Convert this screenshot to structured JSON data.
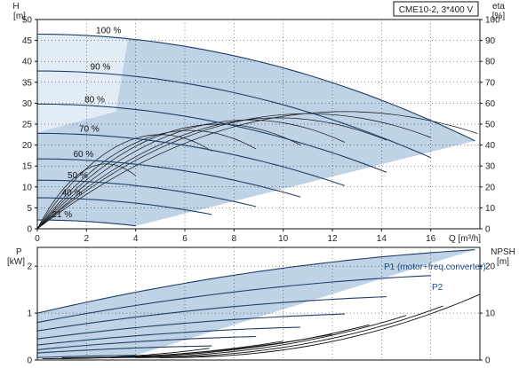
{
  "colors": {
    "area": "#bfd2e6",
    "area_light": "#e2ecf5",
    "curve": "#1f3f66",
    "eta_curve": "#111111",
    "label_blue": "#1f4f86"
  },
  "chart_data": [
    {
      "type": "line",
      "title_box": "CME10-2, 3*400 V",
      "xlabel": "Q [m³/h]",
      "xlim": [
        0,
        18
      ],
      "xticks": [
        "0",
        "2",
        "4",
        "6",
        "8",
        "10",
        "12",
        "14",
        "16"
      ],
      "y_left": {
        "label_top": "H",
        "label_unit": "[m]",
        "ylim": [
          0,
          50
        ],
        "ticks": [
          "0",
          "5",
          "10",
          "15",
          "20",
          "25",
          "30",
          "35",
          "40",
          "45",
          "50"
        ]
      },
      "y_right": {
        "label_top": "eta",
        "label_unit": "[%]",
        "ylim": [
          0,
          100
        ],
        "ticks": [
          "0",
          "10",
          "20",
          "30",
          "40",
          "50",
          "60",
          "70",
          "80",
          "90",
          "100"
        ]
      },
      "speed_curves": [
        {
          "label": "100 %",
          "H0": 46.5,
          "Qmax": 17.8,
          "Hend": 21
        },
        {
          "label": "90 %",
          "H0": 37.7,
          "Qmax": 16.0,
          "Hend": 17
        },
        {
          "label": "80 %",
          "H0": 29.8,
          "Qmax": 14.2,
          "Hend": 13.5
        },
        {
          "label": "70 %",
          "H0": 22.8,
          "Qmax": 12.5,
          "Hend": 10.3
        },
        {
          "label": "60 %",
          "H0": 16.7,
          "Qmax": 10.7,
          "Hend": 7.6
        },
        {
          "label": "50 %",
          "H0": 11.6,
          "Qmax": 8.9,
          "Hend": 5.3
        },
        {
          "label": "40 %",
          "H0": 7.4,
          "Qmax": 7.1,
          "Hend": 3.4
        },
        {
          "label": "21 %",
          "H0": 2.1,
          "Qmax": 4.0,
          "Hend": 0.7
        }
      ],
      "eta_curves": [
        {
          "Qmax": 18.0,
          "peak": 56,
          "Qpeak": 12.5
        },
        {
          "Qmax": 16.0,
          "peak": 55,
          "Qpeak": 11.0
        },
        {
          "Qmax": 14.2,
          "peak": 53,
          "Qpeak": 9.8
        },
        {
          "Qmax": 12.5,
          "peak": 52,
          "Qpeak": 8.6
        },
        {
          "Qmax": 10.7,
          "peak": 50,
          "Qpeak": 7.4
        },
        {
          "Qmax": 8.9,
          "peak": 47,
          "Qpeak": 6.2
        },
        {
          "Qmax": 7.1,
          "peak": 45,
          "Qpeak": 5.0
        },
        {
          "Qmax": 4.0,
          "peak": 31,
          "Qpeak": 2.8
        }
      ]
    },
    {
      "type": "line",
      "xlim": [
        0,
        18
      ],
      "y_left": {
        "label_top": "P",
        "label_unit": "[kW]",
        "ylim": [
          0,
          2.4
        ],
        "ticks": [
          "0",
          "1",
          "2"
        ]
      },
      "y_right": {
        "label_top": "NPSH",
        "label_unit": "[m]",
        "ylim": [
          0,
          24
        ],
        "ticks": [
          "0",
          "10",
          "20"
        ]
      },
      "series_labels": [
        "P1 (motor+freq.converter)",
        "P2"
      ],
      "power_curves": [
        {
          "Qmax": 17.8,
          "P0": 1.0,
          "Pend": 2.35
        },
        {
          "Qmax": 16.0,
          "P0": 0.8,
          "Pend": 1.8
        },
        {
          "Qmax": 14.2,
          "P0": 0.62,
          "Pend": 1.35
        },
        {
          "Qmax": 12.5,
          "P0": 0.45,
          "Pend": 0.98
        },
        {
          "Qmax": 10.7,
          "P0": 0.32,
          "Pend": 0.7
        },
        {
          "Qmax": 8.9,
          "P0": 0.22,
          "Pend": 0.5
        },
        {
          "Qmax": 7.1,
          "P0": 0.15,
          "Pend": 0.3
        },
        {
          "Qmax": 4.0,
          "P0": 0.05,
          "Pend": 0.1
        }
      ],
      "npsh_curves": [
        {
          "Qstart": 5.0,
          "Qend": 18.0,
          "N0": 0.5,
          "Nend": 14
        },
        {
          "Qstart": 4.0,
          "Qend": 16.5,
          "N0": 0.5,
          "Nend": 11.5
        },
        {
          "Qstart": 3.0,
          "Qend": 15.0,
          "N0": 0.5,
          "Nend": 9.5
        },
        {
          "Qstart": 2.0,
          "Qend": 13.5,
          "N0": 0.5,
          "Nend": 7.5
        },
        {
          "Qstart": 1.0,
          "Qend": 12.0,
          "N0": 0.5,
          "Nend": 5.5
        },
        {
          "Qstart": 0.5,
          "Qend": 10.0,
          "N0": 0.3,
          "Nend": 4.0
        },
        {
          "Qstart": 0.2,
          "Qend": 7.0,
          "N0": 0.3,
          "Nend": 2.5
        }
      ]
    }
  ]
}
